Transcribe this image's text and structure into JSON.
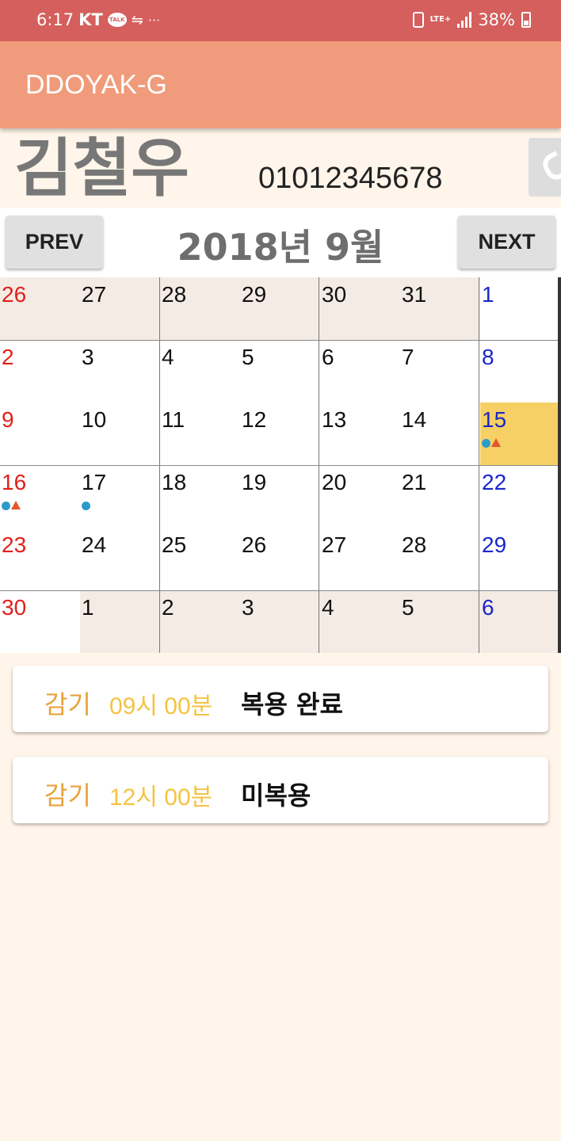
{
  "status_bar": {
    "time": "6:17",
    "carrier": "KT",
    "talk_badge": "TALK",
    "more": "···",
    "lte": "LTE+",
    "battery": "38%"
  },
  "app": {
    "title": "DDOYAK-G"
  },
  "patient": {
    "name": "김철우",
    "phone": "01012345678"
  },
  "calendar": {
    "month_label": "2018년 9월",
    "prev_label": "PREV",
    "next_label": "NEXT",
    "colors": {
      "sunday": "#e0201b",
      "saturday": "#1a27c8",
      "weekday": "#111111",
      "other_month_bg": "#f5ebe5",
      "selected_bg": "#f6d064",
      "dose_taken": "#2d9bc9",
      "dose_missed": "#e4552b"
    },
    "selected_day": "15",
    "weeks": [
      [
        {
          "d": "26",
          "o": true
        },
        {
          "d": "27",
          "o": true
        },
        {
          "d": "28",
          "o": true
        },
        {
          "d": "29",
          "o": true
        },
        {
          "d": "30",
          "o": true
        },
        {
          "d": "31",
          "o": true
        },
        {
          "d": "1"
        }
      ],
      [
        {
          "d": "2"
        },
        {
          "d": "3"
        },
        {
          "d": "4"
        },
        {
          "d": "5"
        },
        {
          "d": "6"
        },
        {
          "d": "7"
        },
        {
          "d": "8"
        }
      ],
      [
        {
          "d": "9"
        },
        {
          "d": "10"
        },
        {
          "d": "11"
        },
        {
          "d": "12"
        },
        {
          "d": "13"
        },
        {
          "d": "14"
        },
        {
          "d": "15",
          "sel": true,
          "m": [
            "dot",
            "tri"
          ]
        }
      ],
      [
        {
          "d": "16",
          "m": [
            "dot",
            "tri"
          ]
        },
        {
          "d": "17",
          "m": [
            "dot"
          ]
        },
        {
          "d": "18"
        },
        {
          "d": "19"
        },
        {
          "d": "20"
        },
        {
          "d": "21"
        },
        {
          "d": "22"
        }
      ],
      [
        {
          "d": "23"
        },
        {
          "d": "24"
        },
        {
          "d": "25"
        },
        {
          "d": "26"
        },
        {
          "d": "27"
        },
        {
          "d": "28"
        },
        {
          "d": "29"
        }
      ],
      [
        {
          "d": "30"
        },
        {
          "d": "1",
          "o": true
        },
        {
          "d": "2",
          "o": true
        },
        {
          "d": "3",
          "o": true
        },
        {
          "d": "4",
          "o": true
        },
        {
          "d": "5",
          "o": true
        },
        {
          "d": "6",
          "o": true
        }
      ]
    ]
  },
  "doses": [
    {
      "medicine": "감기",
      "time": "09시 00분",
      "status": "복용 완료"
    },
    {
      "medicine": "감기",
      "time": "12시 00분",
      "status": "미복용"
    }
  ]
}
